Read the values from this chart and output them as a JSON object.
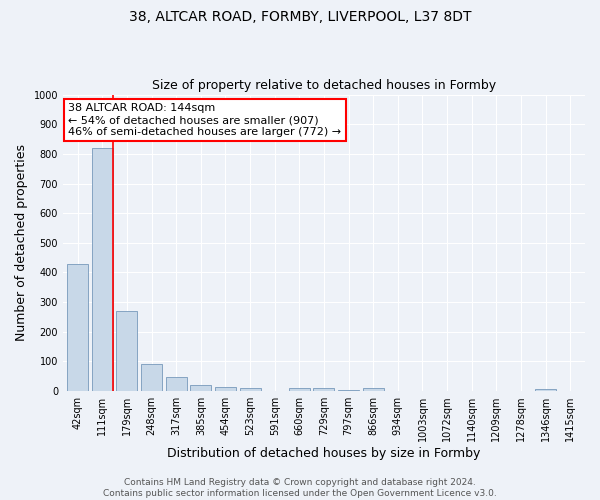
{
  "title1": "38, ALTCAR ROAD, FORMBY, LIVERPOOL, L37 8DT",
  "title2": "Size of property relative to detached houses in Formby",
  "xlabel": "Distribution of detached houses by size in Formby",
  "ylabel": "Number of detached properties",
  "categories": [
    "42sqm",
    "111sqm",
    "179sqm",
    "248sqm",
    "317sqm",
    "385sqm",
    "454sqm",
    "523sqm",
    "591sqm",
    "660sqm",
    "729sqm",
    "797sqm",
    "866sqm",
    "934sqm",
    "1003sqm",
    "1072sqm",
    "1140sqm",
    "1209sqm",
    "1278sqm",
    "1346sqm",
    "1415sqm"
  ],
  "values": [
    430,
    820,
    270,
    90,
    48,
    22,
    15,
    12,
    0,
    10,
    10,
    5,
    10,
    0,
    0,
    0,
    0,
    0,
    0,
    8,
    0
  ],
  "bar_color": "#c8d8e8",
  "bar_edge_color": "#7799bb",
  "vline_color": "red",
  "annotation_text": "38 ALTCAR ROAD: 144sqm\n← 54% of detached houses are smaller (907)\n46% of semi-detached houses are larger (772) →",
  "box_color": "white",
  "box_edge_color": "red",
  "ylim": [
    0,
    1000
  ],
  "footer1": "Contains HM Land Registry data © Crown copyright and database right 2024.",
  "footer2": "Contains public sector information licensed under the Open Government Licence v3.0.",
  "background_color": "#eef2f8",
  "grid_color": "white",
  "title1_fontsize": 10,
  "title2_fontsize": 9,
  "axis_label_fontsize": 9,
  "tick_fontsize": 7,
  "ann_fontsize": 8,
  "footer_fontsize": 6.5
}
